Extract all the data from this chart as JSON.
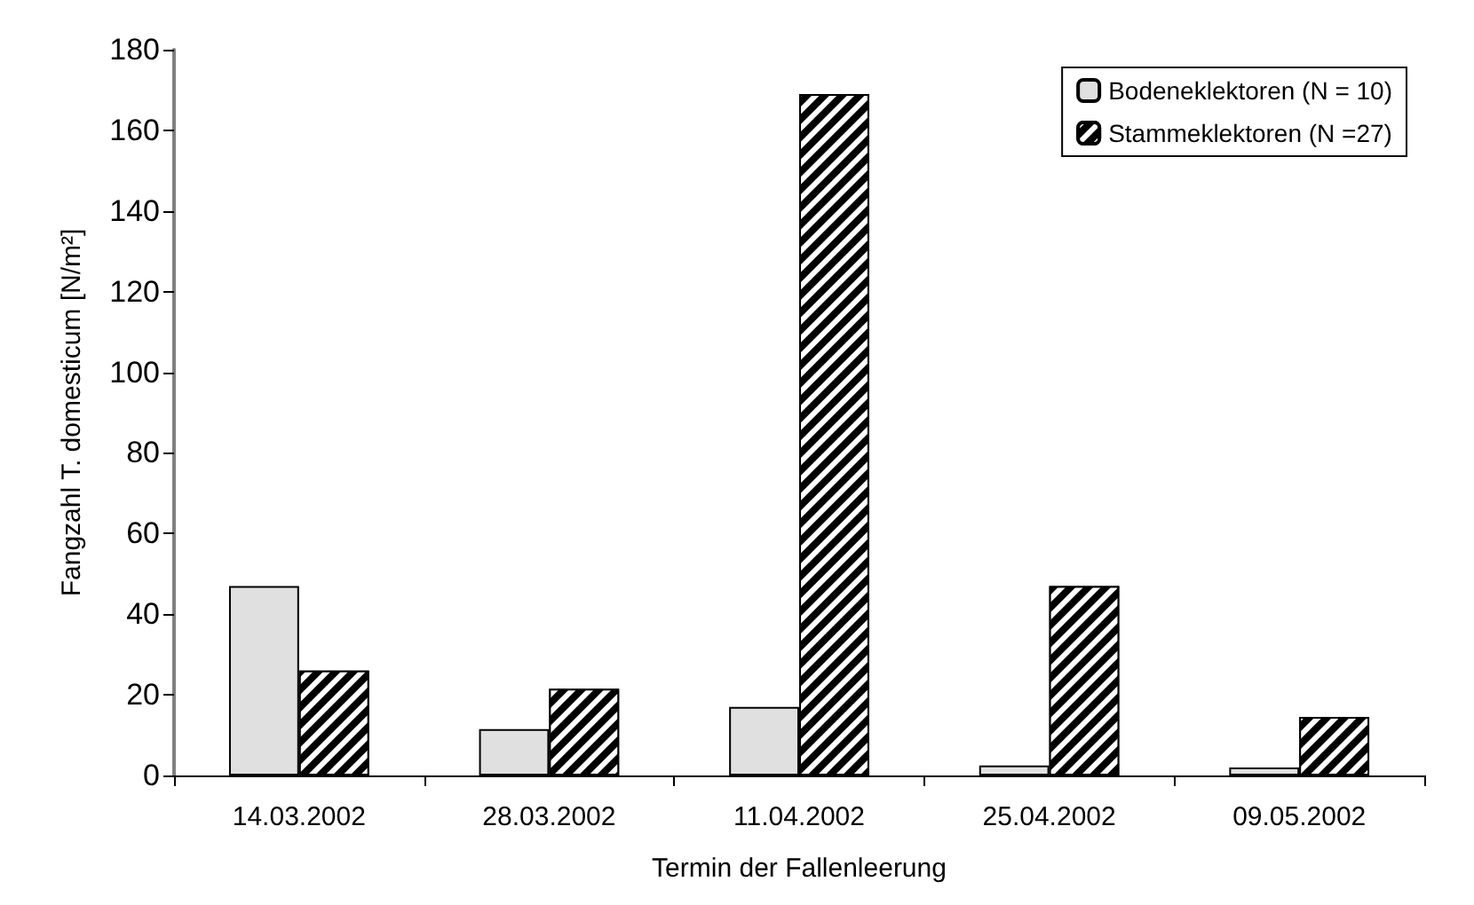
{
  "chart_data": {
    "type": "bar",
    "xlabel": "Termin der Fallenleerung",
    "ylabel": "Fangzahl T. domesticum [N/m²]",
    "categories": [
      "14.03.2002",
      "28.03.2002",
      "11.04.2002",
      "25.04.2002",
      "09.05.2002"
    ],
    "series": [
      {
        "name": "Bodeneklektoren (N = 10)",
        "color": "#e0e0e0",
        "values": [
          47,
          11.5,
          17,
          2.5,
          2
        ]
      },
      {
        "name": "Stammeklektoren (N =27)",
        "color": "#000000",
        "values": [
          26,
          21.5,
          169,
          47,
          14.5
        ]
      }
    ],
    "ylim": [
      0,
      180
    ],
    "yticks": [
      0,
      20,
      40,
      60,
      80,
      100,
      120,
      140,
      160,
      180
    ],
    "grid": false,
    "legend": "top right"
  }
}
